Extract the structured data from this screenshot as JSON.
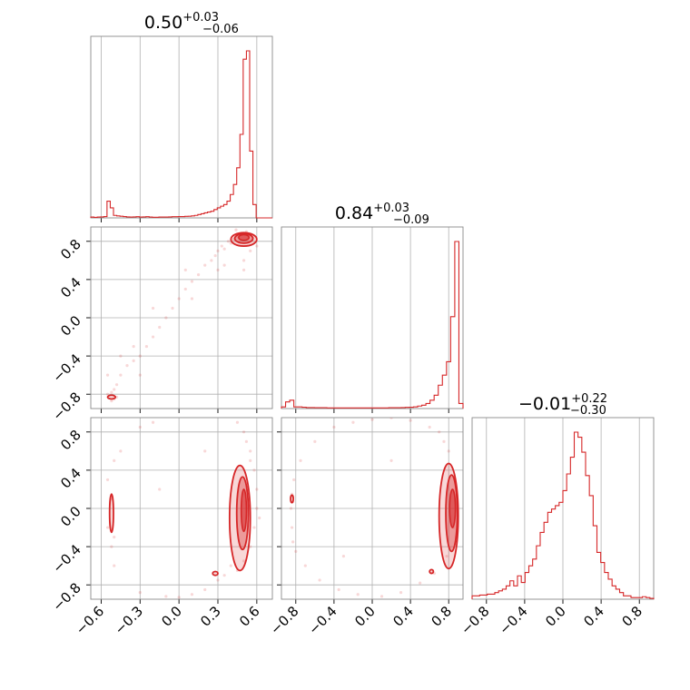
{
  "chart_data": {
    "type": "scatter",
    "style": {
      "color": "#d62728",
      "grid": true
    },
    "titles": [
      {
        "median": "0.50",
        "plus": "+0.03",
        "minus": "−0.06"
      },
      {
        "median": "0.84",
        "plus": "+0.03",
        "minus": "−0.09"
      },
      {
        "median": "−0.01",
        "plus": "+0.22",
        "minus": "−0.30"
      }
    ],
    "params": [
      {
        "range": [
          -0.68,
          0.72
        ],
        "ticks": [
          -0.6,
          -0.3,
          0.0,
          0.3,
          0.6
        ],
        "tick_labels": [
          "−0.6",
          "−0.3",
          "0.0",
          "0.3",
          "0.6"
        ]
      },
      {
        "range": [
          -0.95,
          0.95
        ],
        "ticks": [
          -0.8,
          -0.4,
          0.0,
          0.4,
          0.8
        ],
        "tick_labels": [
          "−0.8",
          "−0.4",
          "0.0",
          "0.4",
          "0.8"
        ]
      },
      {
        "range": [
          -0.95,
          0.95
        ],
        "ticks": [
          -0.8,
          -0.4,
          0.0,
          0.4,
          0.8
        ],
        "tick_labels": [
          "−0.8",
          "−0.4",
          "0.0",
          "0.4",
          "0.8"
        ]
      }
    ],
    "histograms": [
      {
        "bins": [
          -0.68,
          0.72
        ],
        "counts": [
          0.5,
          0.3,
          0.5,
          0.6,
          0.8,
          10,
          6,
          1.5,
          1.2,
          1,
          0.8,
          0.6,
          0.5,
          0.6,
          0.7,
          0.5,
          0.6,
          0.7,
          0.5,
          0.4,
          0.4,
          0.5,
          0.5,
          0.5,
          0.6,
          0.7,
          0.7,
          0.8,
          0.8,
          0.9,
          1,
          1.2,
          1.5,
          2,
          2.5,
          3,
          3.5,
          4,
          5,
          6,
          7,
          8,
          10,
          14,
          20,
          30,
          50,
          95,
          100,
          40,
          8,
          0,
          0,
          0,
          0,
          0
        ]
      },
      {
        "bins": [
          -0.95,
          0.95
        ],
        "counts": [
          1,
          4,
          5,
          1,
          1,
          0.8,
          0.6,
          0.6,
          0.5,
          0.5,
          0.5,
          0.4,
          0.4,
          0.4,
          0.4,
          0.4,
          0.4,
          0.4,
          0.4,
          0.4,
          0.4,
          0.4,
          0.4,
          0.4,
          0.4,
          0.4,
          0.5,
          0.5,
          0.5,
          0.6,
          0.7,
          0.8,
          1,
          1.5,
          2,
          3,
          5,
          8,
          14,
          20,
          28,
          55,
          100,
          3
        ]
      },
      {
        "bins": [
          -0.95,
          0.95
        ],
        "counts": [
          2,
          2,
          2.5,
          2.5,
          3,
          3,
          4,
          5,
          6,
          8,
          11,
          8,
          14,
          10,
          16,
          20,
          24,
          32,
          40,
          46,
          52,
          54,
          56,
          58,
          65,
          75,
          85,
          100,
          97,
          88,
          74,
          62,
          44,
          28,
          22,
          16,
          12,
          8,
          6,
          4,
          2,
          2,
          1,
          1,
          1,
          1.5,
          1,
          0.5
        ]
      }
    ],
    "scatter": [
      {
        "x_param": 0,
        "y_param": 1,
        "points": [
          [
            0.45,
            0.85
          ],
          [
            0.42,
            0.82
          ],
          [
            0.4,
            0.78
          ],
          [
            0.38,
            0.8
          ],
          [
            0.35,
            0.72
          ],
          [
            0.33,
            0.75
          ],
          [
            0.3,
            0.7
          ],
          [
            0.28,
            0.65
          ],
          [
            0.25,
            0.6
          ],
          [
            0.2,
            0.55
          ],
          [
            0.15,
            0.45
          ],
          [
            0.1,
            0.38
          ],
          [
            0.05,
            0.3
          ],
          [
            0.0,
            0.2
          ],
          [
            -0.05,
            0.1
          ],
          [
            -0.1,
            0.0
          ],
          [
            -0.15,
            -0.1
          ],
          [
            -0.2,
            -0.2
          ],
          [
            -0.25,
            -0.3
          ],
          [
            -0.3,
            -0.4
          ],
          [
            -0.35,
            -0.45
          ],
          [
            -0.4,
            -0.5
          ],
          [
            -0.45,
            -0.6
          ],
          [
            -0.48,
            -0.7
          ],
          [
            -0.5,
            -0.75
          ],
          [
            -0.52,
            -0.78
          ],
          [
            -0.55,
            -0.8
          ],
          [
            -0.5,
            -0.85
          ],
          [
            -0.52,
            -0.87
          ],
          [
            -0.48,
            -0.83
          ],
          [
            -0.35,
            -0.3
          ],
          [
            -0.2,
            0.1
          ],
          [
            0.05,
            0.5
          ],
          [
            0.35,
            0.55
          ],
          [
            0.5,
            0.5
          ],
          [
            0.55,
            0.7
          ],
          [
            0.6,
            0.75
          ],
          [
            0.52,
            0.9
          ],
          [
            0.48,
            0.88
          ],
          [
            0.44,
            0.92
          ],
          [
            0.5,
            0.6
          ],
          [
            0.3,
            0.5
          ],
          [
            -0.55,
            -0.6
          ],
          [
            -0.45,
            -0.4
          ],
          [
            -0.3,
            -0.6
          ],
          [
            0.1,
            0.2
          ]
        ],
        "contours": [
          {
            "level": "inner",
            "center": [
              0.5,
              0.84
            ],
            "radii": [
              0.04,
              0.03
            ]
          },
          {
            "level": "mid",
            "center": [
              0.5,
              0.83
            ],
            "radii": [
              0.07,
              0.05
            ]
          },
          {
            "level": "outer",
            "center": [
              0.5,
              0.82
            ],
            "radii": [
              0.1,
              0.07
            ]
          },
          {
            "level": "outer",
            "center": [
              -0.52,
              -0.83
            ],
            "radii": [
              0.03,
              0.02
            ]
          }
        ]
      },
      {
        "x_param": 0,
        "y_param": 2,
        "points": [
          [
            0.5,
            0.8
          ],
          [
            0.52,
            0.7
          ],
          [
            0.55,
            0.6
          ],
          [
            0.58,
            0.4
          ],
          [
            0.6,
            0.2
          ],
          [
            0.6,
            0.0
          ],
          [
            0.58,
            -0.2
          ],
          [
            0.55,
            -0.4
          ],
          [
            0.5,
            -0.55
          ],
          [
            0.45,
            -0.65
          ],
          [
            0.35,
            -0.7
          ],
          [
            0.3,
            -0.75
          ],
          [
            0.2,
            -0.85
          ],
          [
            0.1,
            -0.9
          ],
          [
            0.0,
            -0.93
          ],
          [
            -0.1,
            -0.92
          ],
          [
            -0.3,
            -0.88
          ],
          [
            -0.5,
            -0.6
          ],
          [
            -0.52,
            -0.4
          ],
          [
            -0.55,
            0.3
          ],
          [
            -0.5,
            0.5
          ],
          [
            -0.45,
            0.6
          ],
          [
            -0.3,
            0.85
          ],
          [
            -0.2,
            0.9
          ],
          [
            0.45,
            0.9
          ],
          [
            0.55,
            0.5
          ],
          [
            0.62,
            -0.1
          ],
          [
            0.4,
            -0.6
          ],
          [
            -0.55,
            -0.2
          ],
          [
            -0.52,
            0.1
          ],
          [
            -0.5,
            -0.3
          ],
          [
            -0.15,
            0.2
          ],
          [
            0.2,
            0.6
          ]
        ],
        "contours": [
          {
            "level": "inner",
            "center": [
              0.5,
              -0.02
            ],
            "radii": [
              0.02,
              0.22
            ]
          },
          {
            "level": "mid",
            "center": [
              0.49,
              -0.05
            ],
            "radii": [
              0.045,
              0.38
            ]
          },
          {
            "level": "outer",
            "center": [
              0.47,
              -0.1
            ],
            "radii": [
              0.08,
              0.55
            ]
          },
          {
            "level": "outer",
            "center": [
              -0.52,
              -0.05
            ],
            "radii": [
              0.015,
              0.2
            ]
          },
          {
            "level": "outer",
            "center": [
              0.28,
              -0.68
            ],
            "radii": [
              0.02,
              0.02
            ]
          }
        ]
      },
      {
        "x_param": 1,
        "y_param": 2,
        "points": [
          [
            0.8,
            0.6
          ],
          [
            0.75,
            0.7
          ],
          [
            0.7,
            0.8
          ],
          [
            0.6,
            0.85
          ],
          [
            0.4,
            0.92
          ],
          [
            0.2,
            0.95
          ],
          [
            0.0,
            0.93
          ],
          [
            -0.2,
            0.9
          ],
          [
            -0.4,
            0.85
          ],
          [
            -0.6,
            0.7
          ],
          [
            -0.75,
            0.5
          ],
          [
            -0.82,
            0.3
          ],
          [
            -0.85,
            0.0
          ],
          [
            -0.84,
            -0.2
          ],
          [
            -0.8,
            -0.45
          ],
          [
            -0.7,
            -0.6
          ],
          [
            -0.55,
            -0.75
          ],
          [
            -0.35,
            -0.85
          ],
          [
            -0.15,
            -0.9
          ],
          [
            0.1,
            -0.92
          ],
          [
            0.3,
            -0.88
          ],
          [
            0.5,
            -0.78
          ],
          [
            0.65,
            -0.68
          ],
          [
            0.78,
            -0.5
          ],
          [
            0.85,
            -0.2
          ],
          [
            -0.84,
            0.15
          ],
          [
            -0.83,
            -0.35
          ],
          [
            -0.3,
            -0.5
          ],
          [
            0.2,
            0.5
          ]
        ],
        "contours": [
          {
            "level": "inner",
            "center": [
              0.84,
              0.0
            ],
            "radii": [
              0.03,
              0.2
            ]
          },
          {
            "level": "mid",
            "center": [
              0.83,
              -0.05
            ],
            "radii": [
              0.06,
              0.4
            ]
          },
          {
            "level": "outer",
            "center": [
              0.8,
              -0.08
            ],
            "radii": [
              0.1,
              0.55
            ]
          },
          {
            "level": "outer",
            "center": [
              -0.84,
              0.1
            ],
            "radii": [
              0.012,
              0.04
            ]
          },
          {
            "level": "outer",
            "center": [
              0.62,
              -0.66
            ],
            "radii": [
              0.02,
              0.02
            ]
          }
        ]
      }
    ]
  }
}
